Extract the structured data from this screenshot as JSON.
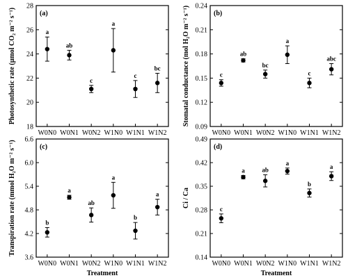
{
  "chart_data": [
    {
      "type": "scatter",
      "panel_label": "(a)",
      "ylabel": "Photosynthetic rate (μmol CO₂ m⁻² s⁻¹)",
      "xlabel": "",
      "categories": [
        "W0N0",
        "W0N1",
        "W0N2",
        "W1N0",
        "W1N1",
        "W1N2"
      ],
      "values": [
        24.4,
        23.9,
        21.1,
        24.3,
        21.1,
        21.6
      ],
      "errors": [
        1.0,
        0.4,
        0.3,
        1.8,
        0.7,
        0.8
      ],
      "significance": [
        "a",
        "ab",
        "c",
        "a",
        "c",
        "bc"
      ],
      "ylim": [
        18,
        28
      ],
      "yticks": [
        18,
        20,
        22,
        24,
        26,
        28
      ],
      "ytick_labels": [
        "18",
        "20",
        "22",
        "24",
        "26",
        "28"
      ],
      "show_xtick_labels": true
    },
    {
      "type": "scatter",
      "panel_label": "(b)",
      "ylabel": "Stomatal conductance (mol H₂O m⁻² s⁻¹)",
      "xlabel": "",
      "categories": [
        "W0N0",
        "W0N1",
        "W0N2",
        "W1N0",
        "W1N1",
        "W1N2"
      ],
      "values": [
        0.144,
        0.172,
        0.155,
        0.179,
        0.144,
        0.161
      ],
      "errors": [
        0.004,
        0.002,
        0.005,
        0.011,
        0.006,
        0.007
      ],
      "significance": [
        "c",
        "ab",
        "bc",
        "a",
        "c",
        "abc"
      ],
      "ylim": [
        0.09,
        0.24
      ],
      "yticks": [
        0.09,
        0.12,
        0.15,
        0.18,
        0.21,
        0.24
      ],
      "ytick_labels": [
        "0.09",
        "0.12",
        "0.15",
        "0.18",
        "0.21",
        "0.24"
      ],
      "show_xtick_labels": true
    },
    {
      "type": "scatter",
      "panel_label": "(c)",
      "ylabel": "Transpiration rate (mmol H₂O m⁻² s⁻¹)",
      "xlabel": "Treatment",
      "categories": [
        "W0N0",
        "W0N1",
        "W0N2",
        "W1N0",
        "W1N1",
        "W1N2"
      ],
      "values": [
        4.23,
        5.12,
        4.67,
        5.17,
        4.27,
        4.87
      ],
      "errors": [
        0.12,
        0.05,
        0.18,
        0.33,
        0.21,
        0.2
      ],
      "significance": [
        "b",
        "a",
        "ab",
        "a",
        "b",
        "a"
      ],
      "ylim": [
        3.6,
        6.6
      ],
      "yticks": [
        3.6,
        4.2,
        4.8,
        5.4,
        6.0,
        6.6
      ],
      "ytick_labels": [
        "3.6",
        "4.2",
        "4.8",
        "5.4",
        "6.0",
        "6.6"
      ],
      "show_xtick_labels": true
    },
    {
      "type": "scatter",
      "panel_label": "(d)",
      "ylabel": "Ci / Ca",
      "xlabel": "Treatment",
      "categories": [
        "W0N0",
        "W0N1",
        "W0N2",
        "W1N0",
        "W1N1",
        "W1N2"
      ],
      "values": [
        0.255,
        0.377,
        0.366,
        0.395,
        0.33,
        0.38
      ],
      "errors": [
        0.013,
        0.005,
        0.018,
        0.009,
        0.012,
        0.013
      ],
      "significance": [
        "c",
        "a",
        "ab",
        "a",
        "b",
        "a"
      ],
      "ylim": [
        0.14,
        0.49
      ],
      "yticks": [
        0.14,
        0.21,
        0.28,
        0.35,
        0.42,
        0.49
      ],
      "ytick_labels": [
        "0.14",
        "0.21",
        "0.28",
        "0.35",
        "0.42",
        "0.49"
      ],
      "show_xtick_labels": true
    }
  ]
}
